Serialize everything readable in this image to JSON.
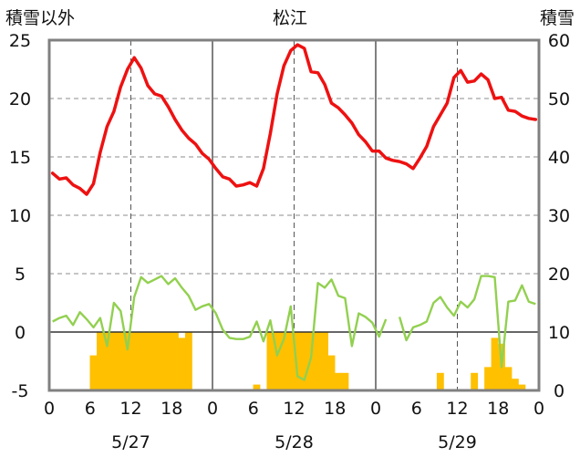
{
  "chart_data": {
    "type": "bar+line",
    "title": "松江",
    "left_axis_label": "積雪以外",
    "right_axis_label": "積雪",
    "left_ylim": [
      -5,
      25
    ],
    "right_ylim": [
      0,
      60
    ],
    "left_ticks": [
      "-5",
      "0",
      "5",
      "10",
      "15",
      "20",
      "25"
    ],
    "right_ticks": [
      "0",
      "10",
      "20",
      "30",
      "40",
      "50",
      "60"
    ],
    "x_hour_ticks": [
      "0",
      "6",
      "12",
      "18",
      "0",
      "6",
      "12",
      "18",
      "0",
      "6",
      "12",
      "18",
      "0"
    ],
    "date_labels": [
      "5/27",
      "5/28",
      "5/29"
    ],
    "grid": true,
    "colors": {
      "temperature": "#ee1111",
      "precip": "#ffc000",
      "wind": "#92d050",
      "frame": "#808080",
      "grid": "#8c8c8c"
    },
    "temperature": [
      13.6,
      13.1,
      13.2,
      12.6,
      12.3,
      11.8,
      12.7,
      15.4,
      17.6,
      18.9,
      21.0,
      22.5,
      23.5,
      22.6,
      21.1,
      20.4,
      20.2,
      19.3,
      18.2,
      17.3,
      16.6,
      16.1,
      15.3,
      14.8,
      14.0,
      13.3,
      13.1,
      12.5,
      12.6,
      12.8,
      12.5,
      14.0,
      17.0,
      20.4,
      22.8,
      24.1,
      24.6,
      24.3,
      22.3,
      22.2,
      21.2,
      19.6,
      19.2,
      18.6,
      17.9,
      16.9,
      16.3,
      15.5,
      15.5,
      14.9,
      14.7,
      14.6,
      14.4,
      14.0,
      14.9,
      15.9,
      17.6,
      18.6,
      19.6,
      21.8,
      22.4,
      21.4,
      21.5,
      22.1,
      21.6,
      20.0,
      20.1,
      19.0,
      18.9,
      18.5,
      18.3,
      18.2
    ],
    "precip": [
      0,
      0,
      0,
      0,
      0,
      0,
      6,
      10,
      10,
      10,
      10,
      10,
      10,
      10,
      10,
      10,
      10,
      10,
      10,
      9,
      10,
      0,
      0,
      0,
      0,
      0,
      0,
      0,
      0,
      0,
      1,
      0,
      10,
      10,
      10,
      10,
      10,
      10,
      10,
      10,
      10,
      6,
      3,
      3,
      0,
      0,
      0,
      0,
      0,
      0,
      0,
      0,
      0,
      0,
      0,
      0,
      0,
      3,
      0,
      0,
      0,
      0,
      3,
      0,
      4,
      9,
      8,
      4,
      2,
      1,
      0,
      0
    ],
    "wind": [
      0.9,
      1.2,
      1.4,
      0.6,
      1.7,
      1.1,
      0.4,
      1.2,
      -1.2,
      2.5,
      1.8,
      -1.5,
      3.0,
      4.7,
      4.2,
      4.5,
      4.8,
      4.1,
      4.6,
      3.8,
      3.1,
      1.9,
      2.2,
      2.4,
      1.6,
      0.2,
      -0.5,
      -0.6,
      -0.6,
      -0.4,
      0.9,
      -0.8,
      1.0,
      -2.0,
      -0.6,
      2.2,
      -3.8,
      -4.1,
      -2.2,
      4.2,
      3.8,
      4.5,
      3.1,
      2.9,
      -1.2,
      1.6,
      1.3,
      0.8,
      -0.4,
      1.1,
      null,
      1.3,
      -0.7,
      0.4,
      0.6,
      0.9,
      2.5,
      3.0,
      2.1,
      1.4,
      2.6,
      2.1,
      2.8,
      4.8,
      4.8,
      4.7,
      -3.0,
      2.6,
      2.7,
      4.0,
      2.6,
      2.4
    ]
  }
}
